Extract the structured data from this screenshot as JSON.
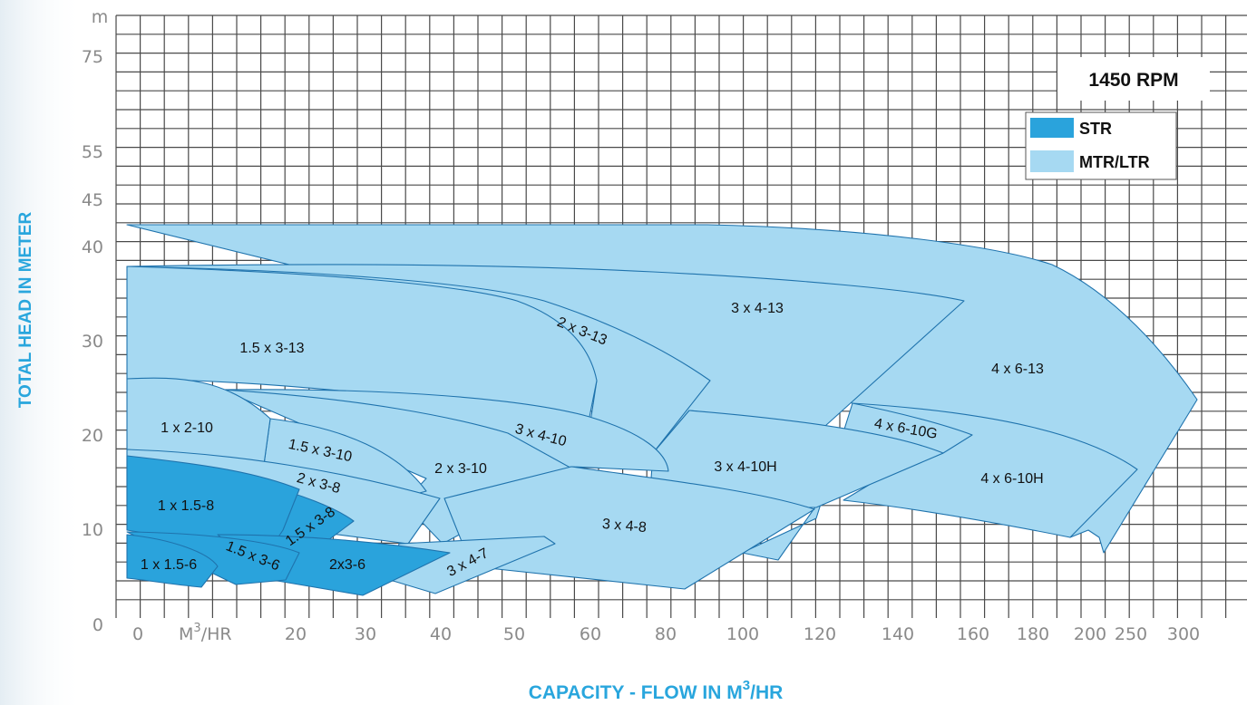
{
  "colors": {
    "str": "#2aa3dc",
    "mtr_ltr": "#a6d9f2",
    "outline": "#1f73ad",
    "grid": "#4a4a4a",
    "axis_title": "#29a6dd"
  },
  "chart_data": {
    "type": "area",
    "title": "",
    "rpm_label": "1450 RPM",
    "xlabel_main": "CAPACITY - FLOW IN M",
    "xlabel_sup": "3",
    "xlabel_tail": "/HR",
    "ylabel": "TOTAL HEAD IN METER",
    "y_unit_label": "m",
    "x_unit_label_main": "M",
    "x_unit_label_sup": "3",
    "x_unit_label_tail": "/HR",
    "x_ticks": [
      "0",
      "20",
      "30",
      "40",
      "50",
      "60",
      "80",
      "100",
      "120",
      "140",
      "160",
      "180",
      "200",
      "250",
      "300"
    ],
    "y_ticks": [
      "0",
      "10",
      "20",
      "30",
      "40",
      "45",
      "55",
      "75"
    ],
    "legend": [
      {
        "name": "STR",
        "type": "str"
      },
      {
        "name": "MTR/LTR",
        "type": "mtr_ltr"
      }
    ],
    "series": [
      {
        "name": "4 x 6-13",
        "type": "mtr_ltr"
      },
      {
        "name": "3 x 4-13",
        "type": "mtr_ltr"
      },
      {
        "name": "2 x 3-13",
        "type": "mtr_ltr"
      },
      {
        "name": "1.5 x 3-13",
        "type": "mtr_ltr"
      },
      {
        "name": "4 x 6-10H",
        "type": "mtr_ltr"
      },
      {
        "name": "4 x 6-10G",
        "type": "mtr_ltr"
      },
      {
        "name": "3 x 4-10H",
        "type": "mtr_ltr"
      },
      {
        "name": "3 x 4-10",
        "type": "mtr_ltr"
      },
      {
        "name": "2 x 3-10",
        "type": "mtr_ltr"
      },
      {
        "name": "1.5 x 3-10",
        "type": "mtr_ltr"
      },
      {
        "name": "1 x 2-10",
        "type": "mtr_ltr"
      },
      {
        "name": "3 x 4-8",
        "type": "mtr_ltr"
      },
      {
        "name": "2 x 3-8",
        "type": "mtr_ltr"
      },
      {
        "name": "3 x 4-7",
        "type": "mtr_ltr"
      },
      {
        "name": "1.5 x 3-8",
        "type": "str"
      },
      {
        "name": "1 x 1.5-8",
        "type": "str"
      },
      {
        "name": "2x3-6",
        "type": "str"
      },
      {
        "name": "1.5 x 3-6",
        "type": "str"
      },
      {
        "name": "1 x 1.5-6",
        "type": "str"
      }
    ]
  }
}
